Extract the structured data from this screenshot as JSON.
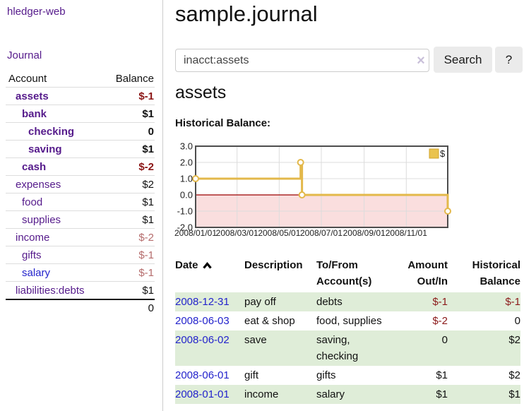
{
  "app": {
    "title": "hledger-web"
  },
  "sidebar": {
    "journal_link": "Journal",
    "headers": {
      "account": "Account",
      "balance": "Balance"
    },
    "accounts": [
      {
        "name": "assets",
        "indent": 1,
        "bold": true,
        "balance": "$-1"
      },
      {
        "name": "bank",
        "indent": 2,
        "bold": true,
        "balance": "$1"
      },
      {
        "name": "checking",
        "indent": 3,
        "bold": true,
        "balance": "0"
      },
      {
        "name": "saving",
        "indent": 3,
        "bold": true,
        "balance": "$1"
      },
      {
        "name": "cash",
        "indent": 2,
        "bold": true,
        "balance": "$-2"
      },
      {
        "name": "expenses",
        "indent": 1,
        "bold": false,
        "balance": "$2"
      },
      {
        "name": "food",
        "indent": 2,
        "bold": false,
        "balance": "$1"
      },
      {
        "name": "supplies",
        "indent": 2,
        "bold": false,
        "balance": "$1"
      },
      {
        "name": "income",
        "indent": 1,
        "bold": false,
        "balance": "$-2"
      },
      {
        "name": "gifts",
        "indent": 2,
        "bold": false,
        "balance": "$-1"
      },
      {
        "name": "salary",
        "indent": 2,
        "bold": false,
        "balance": "$-1",
        "visited": false
      },
      {
        "name": "liabilities:debts",
        "indent": 1,
        "bold": false,
        "balance": "$1"
      }
    ],
    "total": "0"
  },
  "header": {
    "title": "sample.journal"
  },
  "search": {
    "value": "inacct:assets",
    "clear_icon": "×",
    "button_label": "Search",
    "help_label": "?"
  },
  "account_page": {
    "heading": "assets",
    "chart_label": "Historical Balance:"
  },
  "chart_data": {
    "type": "line",
    "step": true,
    "title": "Historical Balance:",
    "legend": "$",
    "series": [
      {
        "name": "$",
        "points": [
          [
            "2008-01-01",
            1
          ],
          [
            "2008-06-01",
            2
          ],
          [
            "2008-06-03",
            0
          ],
          [
            "2008-12-31",
            -1
          ]
        ]
      }
    ],
    "x_ticks": [
      "2008/01/01",
      "2008/03/01",
      "2008/05/01",
      "2008/07/01",
      "2008/09/01",
      "2008/11/01"
    ],
    "y_ticks": [
      "3.0",
      "2.0",
      "1.0",
      "0.0",
      "-1.0",
      "-2.0"
    ],
    "x_range": [
      "2008-01-01",
      "2008-12-31"
    ],
    "ylim": [
      -2,
      3
    ],
    "grid": true,
    "legend_position": "top-right",
    "colors": {
      "line": "#e3b84a",
      "marker_fill": "#ffffff",
      "legend_fill": "#eac34f",
      "legend_border": "#d2a62e",
      "negative_region": "#fadede",
      "zero_line": "#9c0000",
      "grid_line": "#dcdcdc",
      "border": "#4d4d4d"
    }
  },
  "register": {
    "headers": {
      "date": "Date",
      "description": "Description",
      "accounts": "To/From Account(s)",
      "amount": "Amount Out/In",
      "balance": "Historical Balance"
    },
    "rows": [
      {
        "date": "2008-12-31",
        "description": "pay off",
        "accounts": "debts",
        "amount": "$-1",
        "balance": "$-1"
      },
      {
        "date": "2008-06-03",
        "description": "eat & shop",
        "accounts": "food, supplies",
        "amount": "$-2",
        "balance": "0"
      },
      {
        "date": "2008-06-02",
        "description": "save",
        "accounts": "saving, checking",
        "amount": "0",
        "balance": "$2"
      },
      {
        "date": "2008-06-01",
        "description": "gift",
        "accounts": "gifts",
        "amount": "$1",
        "balance": "$2"
      },
      {
        "date": "2008-01-01",
        "description": "income",
        "accounts": "salary",
        "amount": "$1",
        "balance": "$1"
      }
    ]
  }
}
